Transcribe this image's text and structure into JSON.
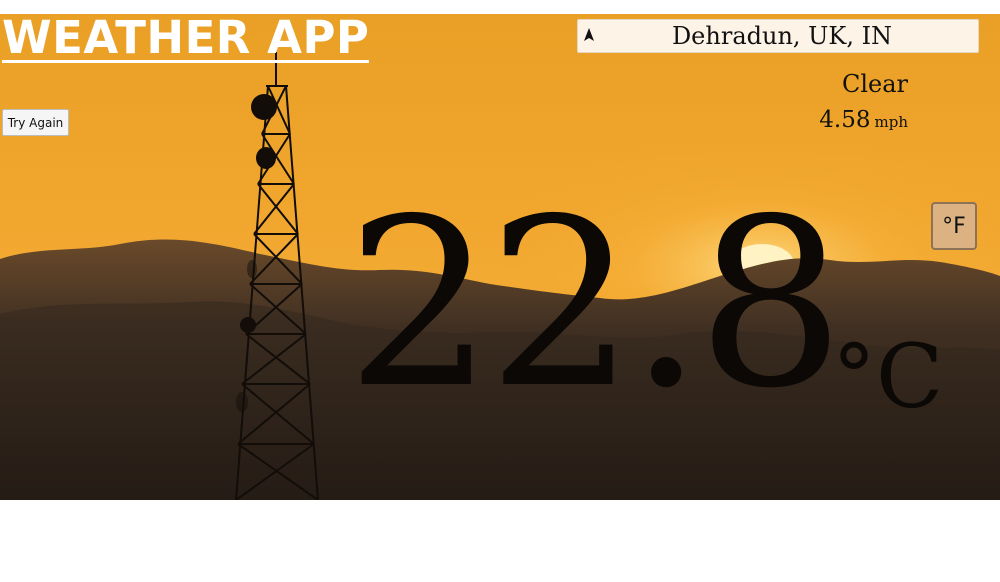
{
  "app": {
    "title": "WEATHER APP"
  },
  "location": {
    "text": "Dehradun, UK, IN",
    "icon": "navigation-arrow-icon"
  },
  "actions": {
    "retry_label": "Try Again"
  },
  "weather": {
    "condition": "Clear",
    "wind_value": "4.58",
    "wind_unit": "mph",
    "temperature": "22.8",
    "temperature_unit": "°C"
  },
  "unit_toggle": {
    "label": "°F"
  },
  "colors": {
    "sky": "#f0a52c",
    "hills": "#2f241c",
    "text_dark": "#0b0806",
    "toggle_bg": "#dcb283"
  }
}
